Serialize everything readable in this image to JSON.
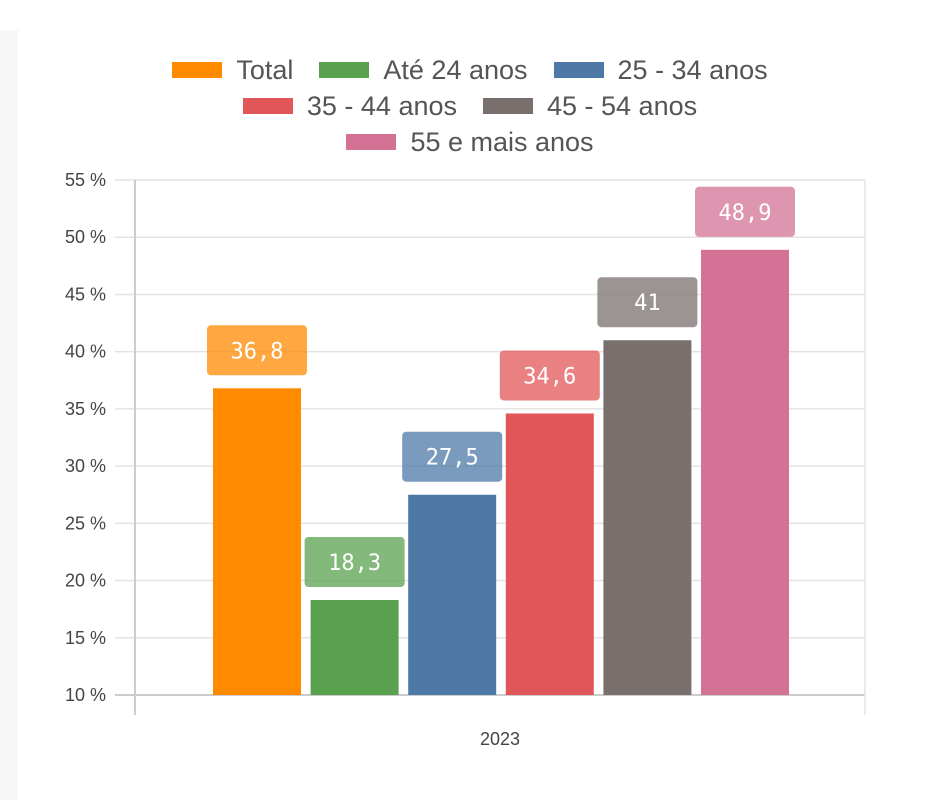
{
  "chart_data": {
    "type": "bar",
    "categories": [
      "2023"
    ],
    "series": [
      {
        "name": "Total",
        "values": [
          36.8
        ],
        "label": "36,8",
        "color": "#ff8a00"
      },
      {
        "name": "Até 24 anos",
        "values": [
          18.3
        ],
        "label": "18,3",
        "color": "#59a14f"
      },
      {
        "name": "25 - 34 anos",
        "values": [
          27.5
        ],
        "label": "27,5",
        "color": "#4e79a7"
      },
      {
        "name": "35 - 44 anos",
        "values": [
          34.6
        ],
        "label": "34,6",
        "color": "#e15759"
      },
      {
        "name": "45 - 54 anos",
        "values": [
          41
        ],
        "label": "41",
        "color": "#79706e"
      },
      {
        "name": "55 e mais anos",
        "values": [
          48.9
        ],
        "label": "48,9",
        "color": "#d37295"
      }
    ],
    "ylim": [
      10,
      55
    ],
    "yticks": [
      "10 %",
      "15 %",
      "20 %",
      "25 %",
      "30 %",
      "35 %",
      "40 %",
      "45 %",
      "50 %",
      "55 %"
    ],
    "ytick_values": [
      10,
      15,
      20,
      25,
      30,
      35,
      40,
      45,
      50,
      55
    ],
    "grid": true,
    "legend": "top"
  }
}
